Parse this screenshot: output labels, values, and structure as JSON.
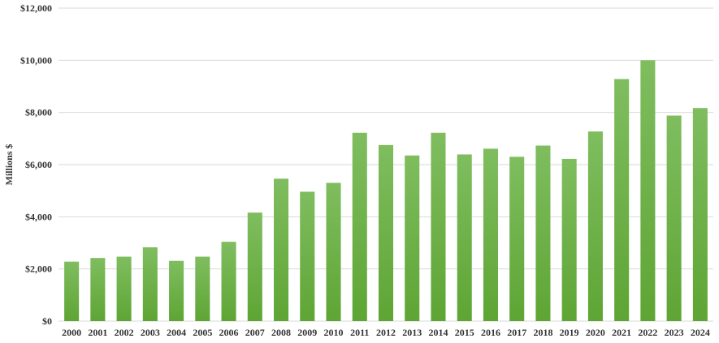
{
  "chart_data": {
    "type": "bar",
    "title": "",
    "xlabel": "",
    "ylabel": "Millions $",
    "ylim": [
      0,
      12000
    ],
    "ytick_values": [
      0,
      2000,
      4000,
      6000,
      8000,
      10000,
      12000
    ],
    "ytick_labels": [
      "$0",
      "$2,000",
      "$4,000",
      "$6,000",
      "$8,000",
      "$10,000",
      "$12,000"
    ],
    "grid": "horizontal",
    "legend": "none",
    "bar_color_top": "#7fbd5f",
    "bar_color_bottom": "#5ea534",
    "grid_color": "#d9d9d9",
    "categories": [
      "2000",
      "2001",
      "2002",
      "2003",
      "2004",
      "2005",
      "2006",
      "2007",
      "2008",
      "2009",
      "2010",
      "2011",
      "2012",
      "2013",
      "2014",
      "2015",
      "2016",
      "2017",
      "2018",
      "2019",
      "2020",
      "2021",
      "2022",
      "2023",
      "2024"
    ],
    "values": [
      2280,
      2420,
      2470,
      2830,
      2310,
      2470,
      3040,
      4160,
      5460,
      4960,
      5300,
      7220,
      6750,
      6350,
      7220,
      6390,
      6610,
      6300,
      6730,
      6220,
      7270,
      9280,
      10000,
      7880,
      8170
    ]
  }
}
